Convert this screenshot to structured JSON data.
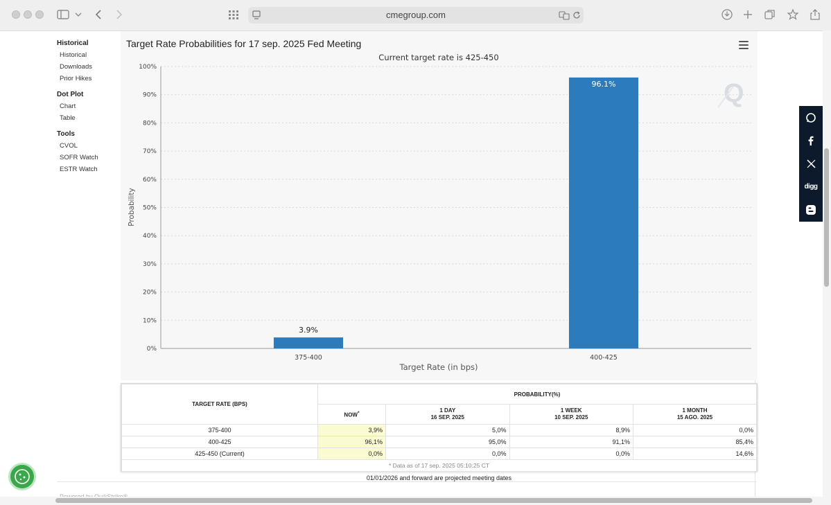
{
  "browser": {
    "url": "cmegroup.com"
  },
  "sidenav": {
    "groups": [
      {
        "title": "Historical",
        "items": [
          "Historical",
          "Downloads",
          "Prior Hikes"
        ]
      },
      {
        "title": "Dot Plot",
        "items": [
          "Chart",
          "Table"
        ]
      },
      {
        "title": "Tools",
        "items": [
          "CVOL",
          "SOFR Watch",
          "ESTR Watch"
        ]
      }
    ]
  },
  "chart_data": {
    "type": "bar",
    "title": "Target Rate Probabilities for 17 sep. 2025 Fed Meeting",
    "subtitle": "Current target rate is 425-450",
    "xlabel": "Target Rate (in bps)",
    "ylabel": "Probability",
    "categories": [
      "375-400",
      "400-425"
    ],
    "values": [
      3.9,
      96.1
    ],
    "data_labels": [
      "3.9%",
      "96.1%"
    ],
    "ylim": [
      0,
      100
    ],
    "yticks": [
      "0%",
      "10%",
      "20%",
      "30%",
      "40%",
      "50%",
      "60%",
      "70%",
      "80%",
      "90%",
      "100%"
    ],
    "grid": true,
    "bar_color": "#2b7bbd"
  },
  "table": {
    "col_rate": "TARGET RATE (BPS)",
    "col_prob": "PROBABILITY(%)",
    "sub_headers": [
      {
        "line1": "NOW",
        "line2": "",
        "mark": "*"
      },
      {
        "line1": "1 DAY",
        "line2": "16 SEP. 2025",
        "mark": ""
      },
      {
        "line1": "1 WEEK",
        "line2": "10 SEP. 2025",
        "mark": ""
      },
      {
        "line1": "1 MONTH",
        "line2": "15 AGO. 2025",
        "mark": ""
      }
    ],
    "rows": [
      {
        "rate": "375-400",
        "values": [
          "3,9%",
          "5,0%",
          "8,9%",
          "0,0%"
        ]
      },
      {
        "rate": "400-425",
        "values": [
          "96,1%",
          "95,0%",
          "91,1%",
          "85,4%"
        ]
      },
      {
        "rate": "425-450 (Current)",
        "values": [
          "0,0%",
          "0,0%",
          "0,0%",
          "14,6%"
        ]
      }
    ],
    "as_of": "* Data as of 17 sep. 2025 05:10:25 CT",
    "footnote": "01/01/2026 and forward are projected meeting dates"
  },
  "footer": {
    "powered": "Powered by QuikStrike®"
  },
  "share": {
    "items": [
      "whatsapp-icon",
      "facebook-icon",
      "x-icon",
      "digg-icon",
      "blogger-icon"
    ],
    "digg_label": "digg"
  },
  "colors": {
    "accent": "#2b7bbd",
    "share_bg": "#0d1a2b",
    "now_highlight": "#fbfbd2"
  }
}
